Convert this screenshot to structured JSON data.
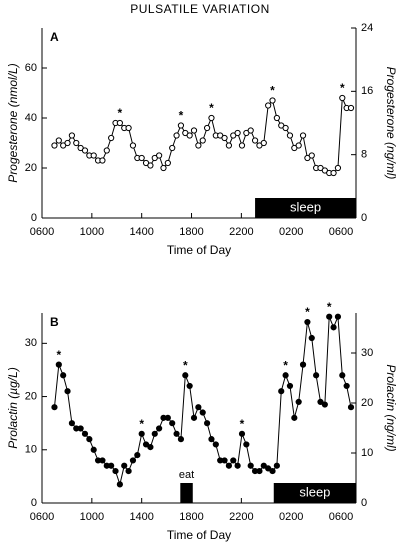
{
  "chart_data": [
    {
      "type": "line",
      "title": "PULSATILE VARIATION",
      "panel": "A",
      "xlabel": "Time of Day",
      "ylabel": "Progesterone (nmol/L)",
      "y2label": "Progesterone (ng/ml)",
      "xlim": [
        6,
        31.2
      ],
      "xticks": [
        {
          "value": 6,
          "label": "0600"
        },
        {
          "value": 10,
          "label": "1000"
        },
        {
          "value": 14,
          "label": "1400"
        },
        {
          "value": 18,
          "label": "1800"
        },
        {
          "value": 22,
          "label": "2200"
        },
        {
          "value": 26,
          "label": "0200"
        },
        {
          "value": 30,
          "label": "0600"
        }
      ],
      "ylim": [
        0,
        76
      ],
      "yticks": [
        0,
        20,
        40,
        60
      ],
      "y2lim": [
        0,
        24
      ],
      "y2ticks": [
        0,
        8,
        16,
        24
      ],
      "marker": "open",
      "series": [
        {
          "color": "#000000",
          "x": [
            7.0,
            7.35,
            7.7,
            8.05,
            8.4,
            8.75,
            9.1,
            9.45,
            9.8,
            10.15,
            10.5,
            10.85,
            11.2,
            11.55,
            11.9,
            12.25,
            12.6,
            12.95,
            13.3,
            13.65,
            14.0,
            14.35,
            14.7,
            15.05,
            15.4,
            15.75,
            16.1,
            16.45,
            16.8,
            17.15,
            17.5,
            17.85,
            18.2,
            18.55,
            18.9,
            19.25,
            19.6,
            19.95,
            20.3,
            20.65,
            21.0,
            21.35,
            21.7,
            22.05,
            22.4,
            22.75,
            23.1,
            23.45,
            23.8,
            24.15,
            24.5,
            24.85,
            25.2,
            25.55,
            25.9,
            26.25,
            26.6,
            26.95,
            27.3,
            27.65,
            28.0,
            28.35,
            28.7,
            29.05,
            29.4,
            29.75,
            30.1,
            30.45,
            30.8
          ],
          "values": [
            29,
            31,
            29,
            30,
            33,
            30,
            28,
            27,
            25,
            25,
            23,
            23,
            27,
            32,
            38,
            38,
            36,
            36,
            29,
            24,
            24,
            22,
            21,
            24,
            25,
            20,
            22,
            28,
            33,
            37,
            34,
            33,
            35,
            29,
            31,
            36,
            40,
            33,
            33,
            32,
            29,
            33,
            34,
            29,
            34,
            35,
            31,
            29,
            30,
            45,
            47,
            40,
            37,
            36,
            33,
            28,
            29,
            33,
            24,
            25,
            20,
            20,
            19,
            18,
            18,
            20,
            48,
            44,
            44
          ]
        }
      ],
      "annotations": [
        {
          "text": "*",
          "x": 12.25,
          "y": 38
        },
        {
          "text": "*",
          "x": 17.15,
          "y": 37
        },
        {
          "text": "*",
          "x": 19.6,
          "y": 40
        },
        {
          "text": "*",
          "x": 24.5,
          "y": 47
        },
        {
          "text": "*",
          "x": 30.1,
          "y": 48
        }
      ],
      "bars": [
        {
          "label": "sleep",
          "start": 23.1,
          "end": 31.2
        }
      ]
    },
    {
      "type": "line",
      "panel": "B",
      "xlabel": "Time of Day",
      "ylabel": "Prolactin (µg/L)",
      "y2label": "Prolactin (ng/ml)",
      "xlim": [
        6,
        31.2
      ],
      "xticks": [
        {
          "value": 6,
          "label": "0600"
        },
        {
          "value": 10,
          "label": "1000"
        },
        {
          "value": 14,
          "label": "1400"
        },
        {
          "value": 18,
          "label": "1800"
        },
        {
          "value": 22,
          "label": "2200"
        },
        {
          "value": 26,
          "label": "0200"
        },
        {
          "value": 30,
          "label": "0600"
        }
      ],
      "ylim": [
        0,
        35.7
      ],
      "yticks": [
        0,
        10,
        20,
        30
      ],
      "y2lim": [
        0,
        38
      ],
      "y2ticks": [
        0,
        10,
        20,
        30
      ],
      "marker": "filled",
      "series": [
        {
          "color": "#000000",
          "x": [
            7.0,
            7.35,
            7.7,
            8.05,
            8.4,
            8.75,
            9.1,
            9.45,
            9.8,
            10.15,
            10.5,
            10.85,
            11.2,
            11.55,
            11.9,
            12.25,
            12.6,
            12.95,
            13.3,
            13.65,
            14.0,
            14.35,
            14.7,
            15.05,
            15.4,
            15.75,
            16.1,
            16.45,
            16.8,
            17.15,
            17.5,
            17.85,
            18.2,
            18.55,
            18.9,
            19.25,
            19.6,
            19.95,
            20.3,
            20.65,
            21.0,
            21.35,
            21.7,
            22.05,
            22.4,
            22.75,
            23.1,
            23.45,
            23.8,
            24.15,
            24.5,
            24.85,
            25.2,
            25.55,
            25.9,
            26.25,
            26.6,
            26.95,
            27.3,
            27.65,
            28.0,
            28.35,
            28.7,
            29.05,
            29.4,
            29.75,
            30.1,
            30.45,
            30.8
          ],
          "values": [
            18,
            26,
            24,
            21,
            15,
            14,
            14,
            13,
            12,
            10,
            8,
            8,
            7,
            7,
            6,
            3.5,
            7,
            6,
            8,
            9,
            13,
            11,
            10.5,
            13,
            14,
            16,
            16,
            15,
            13,
            12,
            24,
            22,
            16,
            18,
            17,
            15,
            12,
            11,
            8,
            8,
            7,
            8,
            7,
            13,
            11,
            7,
            6,
            6,
            7,
            6.5,
            6,
            7,
            21,
            24,
            22,
            16,
            19,
            26,
            34,
            31,
            24,
            19,
            18.5,
            35,
            33,
            35,
            24,
            22,
            18
          ]
        }
      ],
      "annotations": [
        {
          "text": "*",
          "x": 7.35,
          "y": 26
        },
        {
          "text": "*",
          "x": 14.0,
          "y": 13
        },
        {
          "text": "*",
          "x": 17.5,
          "y": 24
        },
        {
          "text": "*",
          "x": 22.05,
          "y": 13
        },
        {
          "text": "*",
          "x": 25.55,
          "y": 24
        },
        {
          "text": "*",
          "x": 27.3,
          "y": 34
        },
        {
          "text": "*",
          "x": 29.05,
          "y": 35
        }
      ],
      "bars": [
        {
          "label": "eat",
          "start": 17.1,
          "end": 18.1
        },
        {
          "label": "sleep",
          "start": 24.6,
          "end": 31.2
        }
      ]
    }
  ]
}
